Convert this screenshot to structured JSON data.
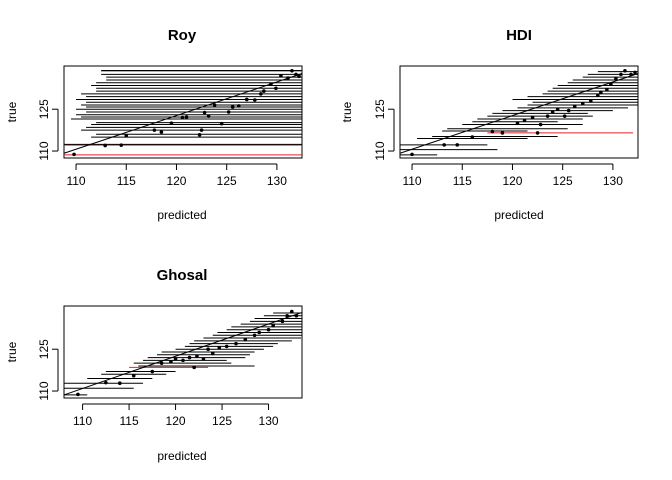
{
  "chart_data": [
    {
      "type": "scatter",
      "title": "Roy",
      "xlabel": "predicted",
      "ylabel": "true",
      "xlim": [
        108.8,
        132.5
      ],
      "ylim": [
        107.5,
        140.5
      ],
      "xticks": [
        110,
        115,
        120,
        125,
        130
      ],
      "yticks": [
        110,
        125
      ],
      "reference_line": [
        [
          108.8,
          109.2
        ],
        [
          132.5,
          137.8
        ]
      ],
      "points": [
        {
          "x": 109.8,
          "y": 108.8
        },
        {
          "x": 112.9,
          "y": 112.0
        },
        {
          "x": 114.5,
          "y": 112.1
        },
        {
          "x": 115.0,
          "y": 115.5
        },
        {
          "x": 117.8,
          "y": 117.5
        },
        {
          "x": 118.5,
          "y": 116.8
        },
        {
          "x": 119.5,
          "y": 120.0
        },
        {
          "x": 120.6,
          "y": 122.0
        },
        {
          "x": 121.0,
          "y": 122.2
        },
        {
          "x": 122.3,
          "y": 115.8
        },
        {
          "x": 122.5,
          "y": 117.5
        },
        {
          "x": 122.8,
          "y": 123.8
        },
        {
          "x": 123.2,
          "y": 122.5
        },
        {
          "x": 123.8,
          "y": 126.5
        },
        {
          "x": 124.5,
          "y": 119.8
        },
        {
          "x": 125.2,
          "y": 124.0
        },
        {
          "x": 125.6,
          "y": 125.8
        },
        {
          "x": 126.2,
          "y": 126.2
        },
        {
          "x": 127.0,
          "y": 128.5
        },
        {
          "x": 127.8,
          "y": 128.3
        },
        {
          "x": 128.4,
          "y": 130.5
        },
        {
          "x": 128.7,
          "y": 131.5
        },
        {
          "x": 129.4,
          "y": 134.0
        },
        {
          "x": 129.9,
          "y": 132.5
        },
        {
          "x": 130.4,
          "y": 137.0
        },
        {
          "x": 131.1,
          "y": 136.2
        },
        {
          "x": 131.5,
          "y": 138.8
        },
        {
          "x": 131.9,
          "y": 137.5
        },
        {
          "x": 132.2,
          "y": 136.8
        }
      ],
      "intervals": [
        {
          "y": 108.6,
          "lo": 108.8,
          "hi": 132.5,
          "c": "red"
        },
        {
          "y": 112.1,
          "lo": 108.8,
          "hi": 132.5,
          "c": "red"
        },
        {
          "y": 112.4,
          "lo": 108.8,
          "hi": 132.5,
          "c": "black"
        },
        {
          "y": 115.0,
          "lo": 111.5,
          "hi": 132.5,
          "c": "black"
        },
        {
          "y": 116.0,
          "lo": 112.0,
          "hi": 132.5,
          "c": "black"
        },
        {
          "y": 117.5,
          "lo": 110.5,
          "hi": 132.5,
          "c": "black"
        },
        {
          "y": 118.5,
          "lo": 111.0,
          "hi": 132.5,
          "c": "black"
        },
        {
          "y": 119.5,
          "lo": 111.5,
          "hi": 132.5,
          "c": "black"
        },
        {
          "y": 120.2,
          "lo": 112.0,
          "hi": 132.5,
          "c": "black"
        },
        {
          "y": 121.5,
          "lo": 109.5,
          "hi": 132.5,
          "c": "black"
        },
        {
          "y": 122.2,
          "lo": 110.5,
          "hi": 132.5,
          "c": "black"
        },
        {
          "y": 123.0,
          "lo": 110.0,
          "hi": 132.5,
          "c": "black"
        },
        {
          "y": 124.0,
          "lo": 111.0,
          "hi": 132.5,
          "c": "black"
        },
        {
          "y": 125.0,
          "lo": 110.0,
          "hi": 132.5,
          "c": "black"
        },
        {
          "y": 125.8,
          "lo": 111.0,
          "hi": 132.5,
          "c": "black"
        },
        {
          "y": 126.5,
          "lo": 110.5,
          "hi": 132.5,
          "c": "black"
        },
        {
          "y": 127.5,
          "lo": 111.0,
          "hi": 132.5,
          "c": "black"
        },
        {
          "y": 128.5,
          "lo": 110.0,
          "hi": 132.5,
          "c": "black"
        },
        {
          "y": 129.5,
          "lo": 111.0,
          "hi": 132.5,
          "c": "black"
        },
        {
          "y": 130.5,
          "lo": 110.5,
          "hi": 132.5,
          "c": "black"
        },
        {
          "y": 131.5,
          "lo": 112.0,
          "hi": 132.5,
          "c": "black"
        },
        {
          "y": 132.5,
          "lo": 112.0,
          "hi": 132.5,
          "c": "black"
        },
        {
          "y": 133.5,
          "lo": 111.5,
          "hi": 132.5,
          "c": "black"
        },
        {
          "y": 134.5,
          "lo": 112.0,
          "hi": 132.5,
          "c": "black"
        },
        {
          "y": 135.5,
          "lo": 113.0,
          "hi": 132.5,
          "c": "black"
        },
        {
          "y": 136.5,
          "lo": 113.0,
          "hi": 132.5,
          "c": "black"
        },
        {
          "y": 137.5,
          "lo": 112.5,
          "hi": 132.5,
          "c": "black"
        },
        {
          "y": 138.7,
          "lo": 112.5,
          "hi": 132.5,
          "c": "red"
        },
        {
          "y": 138.9,
          "lo": 112.5,
          "hi": 132.5,
          "c": "black"
        }
      ]
    },
    {
      "type": "scatter",
      "title": "HDI",
      "xlabel": "predicted",
      "ylabel": "true",
      "xlim": [
        108.8,
        132.5
      ],
      "ylim": [
        107.5,
        140.5
      ],
      "xticks": [
        110,
        115,
        120,
        125,
        130
      ],
      "yticks": [
        110,
        125
      ],
      "reference_line": [
        [
          108.8,
          109.2
        ],
        [
          132.5,
          137.8
        ]
      ],
      "points": [
        {
          "x": 110.0,
          "y": 108.8
        },
        {
          "x": 113.2,
          "y": 112.2
        },
        {
          "x": 114.5,
          "y": 112.2
        },
        {
          "x": 116.0,
          "y": 115.0
        },
        {
          "x": 118.0,
          "y": 117.0
        },
        {
          "x": 119.0,
          "y": 116.5
        },
        {
          "x": 120.5,
          "y": 120.0
        },
        {
          "x": 121.2,
          "y": 121.0
        },
        {
          "x": 122.0,
          "y": 122.0
        },
        {
          "x": 122.5,
          "y": 116.5
        },
        {
          "x": 122.8,
          "y": 119.5
        },
        {
          "x": 123.5,
          "y": 122.5
        },
        {
          "x": 124.0,
          "y": 124.0
        },
        {
          "x": 124.5,
          "y": 125.0
        },
        {
          "x": 125.2,
          "y": 122.5
        },
        {
          "x": 125.6,
          "y": 124.5
        },
        {
          "x": 126.2,
          "y": 126.0
        },
        {
          "x": 127.0,
          "y": 127.0
        },
        {
          "x": 127.8,
          "y": 128.0
        },
        {
          "x": 128.5,
          "y": 130.0
        },
        {
          "x": 128.8,
          "y": 131.0
        },
        {
          "x": 129.4,
          "y": 132.0
        },
        {
          "x": 129.8,
          "y": 134.0
        },
        {
          "x": 130.3,
          "y": 136.0
        },
        {
          "x": 130.8,
          "y": 137.5
        },
        {
          "x": 131.2,
          "y": 138.8
        },
        {
          "x": 131.8,
          "y": 137.5
        },
        {
          "x": 132.2,
          "y": 138.2
        }
      ],
      "intervals": [
        {
          "y": 108.6,
          "lo": 108.8,
          "hi": 112.5,
          "c": "black"
        },
        {
          "y": 110.5,
          "lo": 108.8,
          "hi": 118.5,
          "c": "black"
        },
        {
          "y": 112.2,
          "lo": 108.8,
          "hi": 117.5,
          "c": "black"
        },
        {
          "y": 114.5,
          "lo": 110.5,
          "hi": 121.5,
          "c": "black"
        },
        {
          "y": 115.2,
          "lo": 112.0,
          "hi": 124.5,
          "c": "black"
        },
        {
          "y": 116.5,
          "lo": 117.5,
          "hi": 132.0,
          "c": "red"
        },
        {
          "y": 117.2,
          "lo": 113.0,
          "hi": 121.5,
          "c": "black"
        },
        {
          "y": 118.0,
          "lo": 113.5,
          "hi": 125.5,
          "c": "black"
        },
        {
          "y": 119.5,
          "lo": 115.0,
          "hi": 127.0,
          "c": "black"
        },
        {
          "y": 120.5,
          "lo": 116.0,
          "hi": 124.5,
          "c": "black"
        },
        {
          "y": 121.5,
          "lo": 116.5,
          "hi": 127.0,
          "c": "black"
        },
        {
          "y": 122.5,
          "lo": 117.5,
          "hi": 128.0,
          "c": "black"
        },
        {
          "y": 123.5,
          "lo": 118.0,
          "hi": 127.5,
          "c": "black"
        },
        {
          "y": 124.5,
          "lo": 119.0,
          "hi": 130.0,
          "c": "black"
        },
        {
          "y": 125.5,
          "lo": 120.5,
          "hi": 131.5,
          "c": "black"
        },
        {
          "y": 126.5,
          "lo": 121.5,
          "hi": 132.5,
          "c": "black"
        },
        {
          "y": 127.5,
          "lo": 122.0,
          "hi": 132.5,
          "c": "black"
        },
        {
          "y": 128.5,
          "lo": 120.0,
          "hi": 132.5,
          "c": "black"
        },
        {
          "y": 129.5,
          "lo": 121.5,
          "hi": 132.5,
          "c": "black"
        },
        {
          "y": 130.5,
          "lo": 123.0,
          "hi": 132.5,
          "c": "black"
        },
        {
          "y": 131.5,
          "lo": 123.5,
          "hi": 132.5,
          "c": "black"
        },
        {
          "y": 132.5,
          "lo": 124.0,
          "hi": 132.5,
          "c": "black"
        },
        {
          "y": 133.5,
          "lo": 124.5,
          "hi": 132.5,
          "c": "black"
        },
        {
          "y": 134.5,
          "lo": 125.5,
          "hi": 132.5,
          "c": "black"
        },
        {
          "y": 135.5,
          "lo": 126.0,
          "hi": 132.5,
          "c": "black"
        },
        {
          "y": 136.5,
          "lo": 127.0,
          "hi": 132.5,
          "c": "black"
        },
        {
          "y": 137.5,
          "lo": 127.5,
          "hi": 132.5,
          "c": "black"
        },
        {
          "y": 138.5,
          "lo": 128.5,
          "hi": 132.5,
          "c": "black"
        }
      ]
    },
    {
      "type": "scatter",
      "title": "Ghosal",
      "xlabel": "predicted",
      "ylabel": "true",
      "xlim": [
        108.0,
        133.6
      ],
      "ylim": [
        107.5,
        140.5
      ],
      "xticks": [
        110,
        115,
        120,
        125,
        130
      ],
      "yticks": [
        110,
        125
      ],
      "reference_line": [
        [
          108.0,
          108.6
        ],
        [
          133.6,
          138.2
        ]
      ],
      "points": [
        {
          "x": 109.5,
          "y": 108.8
        },
        {
          "x": 112.5,
          "y": 113.0
        },
        {
          "x": 114.0,
          "y": 112.8
        },
        {
          "x": 115.5,
          "y": 115.5
        },
        {
          "x": 117.5,
          "y": 117.0
        },
        {
          "x": 118.5,
          "y": 120.0
        },
        {
          "x": 119.5,
          "y": 120.5
        },
        {
          "x": 120.0,
          "y": 121.5
        },
        {
          "x": 120.8,
          "y": 121.0
        },
        {
          "x": 121.5,
          "y": 122.0
        },
        {
          "x": 122.0,
          "y": 118.5
        },
        {
          "x": 122.3,
          "y": 122.5
        },
        {
          "x": 123.0,
          "y": 121.5
        },
        {
          "x": 123.5,
          "y": 125.0
        },
        {
          "x": 124.0,
          "y": 123.5
        },
        {
          "x": 124.7,
          "y": 125.5
        },
        {
          "x": 125.5,
          "y": 126.0
        },
        {
          "x": 126.5,
          "y": 127.0
        },
        {
          "x": 127.5,
          "y": 128.5
        },
        {
          "x": 128.5,
          "y": 130.0
        },
        {
          "x": 129.0,
          "y": 131.0
        },
        {
          "x": 130.0,
          "y": 132.0
        },
        {
          "x": 130.5,
          "y": 133.5
        },
        {
          "x": 131.5,
          "y": 135.0
        },
        {
          "x": 132.0,
          "y": 137.0
        },
        {
          "x": 132.5,
          "y": 138.5
        },
        {
          "x": 133.0,
          "y": 137.0
        }
      ],
      "intervals": [
        {
          "y": 108.6,
          "lo": 108.0,
          "hi": 110.5,
          "c": "black"
        },
        {
          "y": 111.0,
          "lo": 108.0,
          "hi": 115.5,
          "c": "black"
        },
        {
          "y": 112.8,
          "lo": 108.0,
          "hi": 116.5,
          "c": "black"
        },
        {
          "y": 114.5,
          "lo": 110.5,
          "hi": 117.5,
          "c": "black"
        },
        {
          "y": 116.0,
          "lo": 112.0,
          "hi": 119.0,
          "c": "black"
        },
        {
          "y": 117.0,
          "lo": 112.5,
          "hi": 120.0,
          "c": "black"
        },
        {
          "y": 118.5,
          "lo": 115.0,
          "hi": 123.5,
          "c": "red"
        },
        {
          "y": 119.0,
          "lo": 116.0,
          "hi": 128.5,
          "c": "black"
        },
        {
          "y": 120.0,
          "lo": 115.5,
          "hi": 126.0,
          "c": "black"
        },
        {
          "y": 121.0,
          "lo": 116.5,
          "hi": 125.5,
          "c": "black"
        },
        {
          "y": 122.0,
          "lo": 117.0,
          "hi": 127.5,
          "c": "black"
        },
        {
          "y": 123.0,
          "lo": 118.0,
          "hi": 128.0,
          "c": "black"
        },
        {
          "y": 124.0,
          "lo": 118.5,
          "hi": 128.5,
          "c": "black"
        },
        {
          "y": 125.0,
          "lo": 120.0,
          "hi": 129.5,
          "c": "black"
        },
        {
          "y": 126.0,
          "lo": 121.0,
          "hi": 130.5,
          "c": "black"
        },
        {
          "y": 127.0,
          "lo": 121.5,
          "hi": 131.0,
          "c": "black"
        },
        {
          "y": 128.0,
          "lo": 122.0,
          "hi": 132.5,
          "c": "black"
        },
        {
          "y": 129.0,
          "lo": 123.0,
          "hi": 133.5,
          "c": "black"
        },
        {
          "y": 130.0,
          "lo": 124.0,
          "hi": 133.6,
          "c": "black"
        },
        {
          "y": 131.0,
          "lo": 124.5,
          "hi": 133.6,
          "c": "black"
        },
        {
          "y": 132.0,
          "lo": 125.5,
          "hi": 133.6,
          "c": "black"
        },
        {
          "y": 133.0,
          "lo": 126.0,
          "hi": 133.6,
          "c": "black"
        },
        {
          "y": 134.0,
          "lo": 127.0,
          "hi": 133.6,
          "c": "black"
        },
        {
          "y": 135.0,
          "lo": 128.0,
          "hi": 133.6,
          "c": "black"
        },
        {
          "y": 136.0,
          "lo": 128.5,
          "hi": 133.6,
          "c": "black"
        },
        {
          "y": 137.0,
          "lo": 129.5,
          "hi": 133.6,
          "c": "black"
        },
        {
          "y": 138.0,
          "lo": 130.5,
          "hi": 133.6,
          "c": "black"
        }
      ]
    }
  ]
}
